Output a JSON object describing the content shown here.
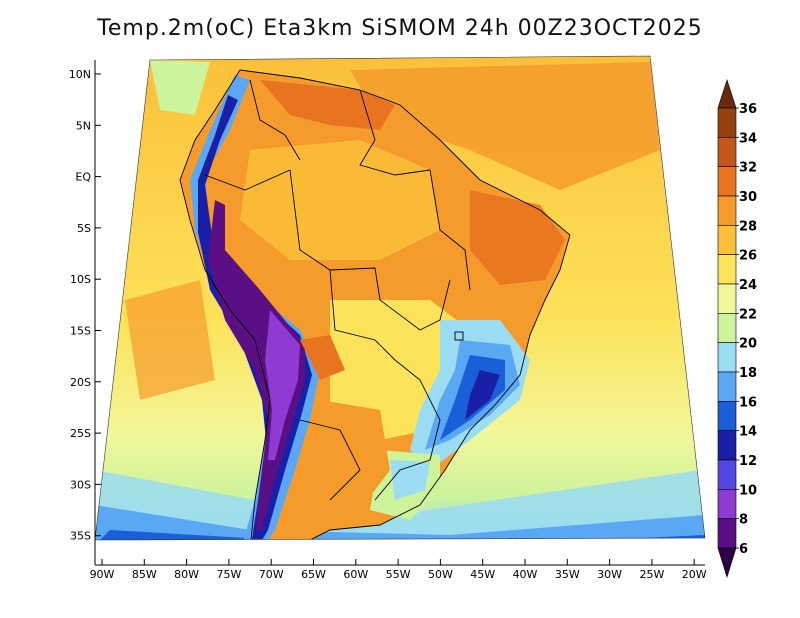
{
  "title": "Temp.2m(oC) Eta3km SiSMOM 24h 00Z23OCT2025",
  "y_axis_labels": [
    "10N",
    "5N",
    "EQ",
    "5S",
    "10S",
    "15S",
    "20S",
    "25S",
    "30S",
    "35S"
  ],
  "x_axis_labels": [
    "90W",
    "85W",
    "80W",
    "75W",
    "70W",
    "65W",
    "60W",
    "55W",
    "50W",
    "45W",
    "40W",
    "35W",
    "30W",
    "25W",
    "20W"
  ],
  "colorbar": {
    "labels": [
      "36",
      "34",
      "32",
      "30",
      "28",
      "26",
      "24",
      "22",
      "20",
      "18",
      "16",
      "14",
      "12",
      "10",
      "8",
      "6"
    ],
    "colors": [
      "#6b2a0b",
      "#94420f",
      "#c2561b",
      "#e9741f",
      "#f59b2c",
      "#fbbf38",
      "#fde35a",
      "#f2f79a",
      "#cdf39b",
      "#9adcf3",
      "#5aa7f3",
      "#1a5fd8",
      "#1a1fa8",
      "#5447e8",
      "#8e3ad3",
      "#5b0f85",
      "#2d0045"
    ]
  }
}
